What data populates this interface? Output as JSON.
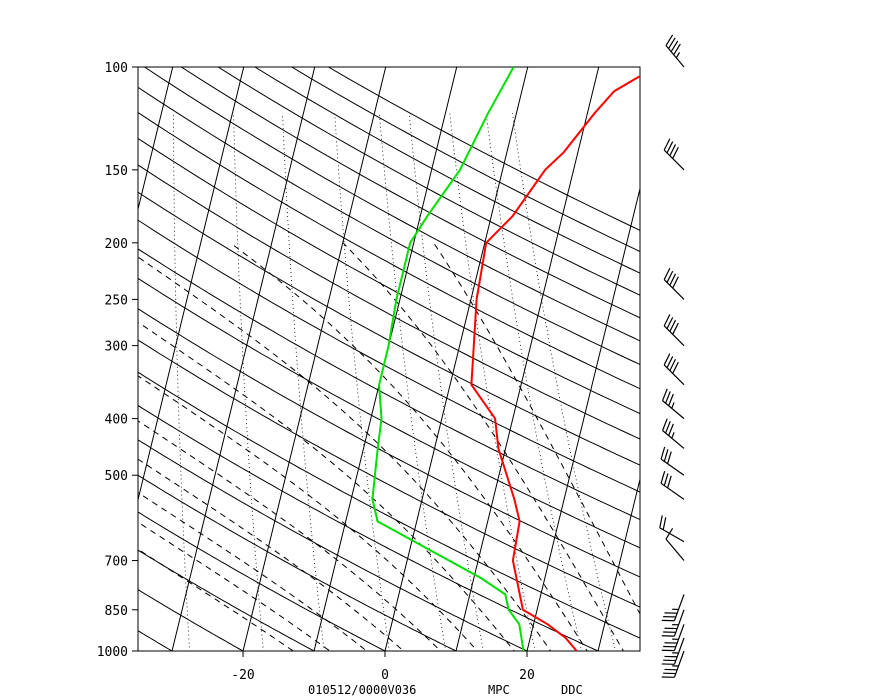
{
  "chart_data": {
    "type": "line",
    "title": "",
    "xlabel": "",
    "ylabel": "",
    "x_units": "degC",
    "y_units": "hPa",
    "y_scale": "log",
    "ylim": [
      1000,
      100
    ],
    "xlim": [
      -34,
      35
    ],
    "grid": false,
    "pressure_ticks": [
      "100",
      "150",
      "200",
      "250",
      "300",
      "400",
      "500",
      "700",
      "850",
      "1000"
    ],
    "temperature_ticks": [
      "-20",
      "0",
      "20"
    ],
    "footer": {
      "run": "010512/0000V036",
      "source": "MPC",
      "station": "DDC"
    },
    "series": [
      {
        "color": "#ff0000",
        "x": [
          27,
          25,
          22,
          18,
          14.9,
          14.5,
          13,
          9,
          7.5,
          3,
          2,
          0.8,
          0.2,
          3,
          6,
          8,
          11,
          13,
          18
        ],
        "y": [
          1000,
          950,
          900,
          850,
          700,
          600,
          550,
          450,
          400,
          350,
          300,
          250,
          200,
          180,
          150,
          140,
          120,
          110,
          100
        ]
      },
      {
        "color": "#00e000",
        "x": [
          19.5,
          18,
          16,
          15,
          11,
          -5.5,
          -7,
          -8,
          -8.5,
          -10,
          -10,
          -10.5,
          -10.5,
          -9,
          -6,
          -4,
          -2
        ],
        "y": [
          1000,
          900,
          850,
          800,
          750,
          600,
          550,
          450,
          400,
          350,
          300,
          250,
          200,
          180,
          150,
          120,
          100
        ]
      }
    ],
    "wind_barbs": [
      {
        "pressure": 100,
        "direction": 320,
        "speed": 45
      },
      {
        "pressure": 150,
        "direction": 315,
        "speed": 40
      },
      {
        "pressure": 250,
        "direction": 315,
        "speed": 40
      },
      {
        "pressure": 300,
        "direction": 315,
        "speed": 40
      },
      {
        "pressure": 350,
        "direction": 315,
        "speed": 40
      },
      {
        "pressure": 400,
        "direction": 310,
        "speed": 35
      },
      {
        "pressure": 450,
        "direction": 310,
        "speed": 35
      },
      {
        "pressure": 500,
        "direction": 305,
        "speed": 30
      },
      {
        "pressure": 550,
        "direction": 305,
        "speed": 30
      },
      {
        "pressure": 650,
        "direction": 300,
        "speed": 20
      },
      {
        "pressure": 700,
        "direction": 320,
        "speed": 10
      },
      {
        "pressure": 800,
        "direction": 200,
        "speed": 35
      },
      {
        "pressure": 850,
        "direction": 200,
        "speed": 35
      },
      {
        "pressure": 900,
        "direction": 200,
        "speed": 35
      },
      {
        "pressure": 950,
        "direction": 200,
        "speed": 35
      },
      {
        "pressure": 1000,
        "direction": 200,
        "speed": 35
      }
    ]
  }
}
